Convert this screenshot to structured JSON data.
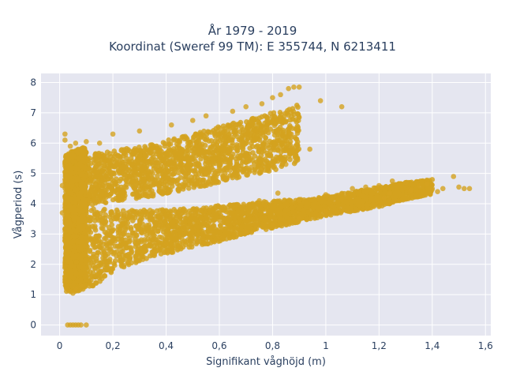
{
  "chart_data": {
    "type": "scatter",
    "title_lines": [
      "År 1979 - 2019",
      "Koordinat (Sweref 99 TM): E 355744, N 6213411"
    ],
    "xlabel": "Signifikant våghöjd (m)",
    "ylabel": "Vågperiod (s)",
    "xlim": [
      -0.07,
      1.62
    ],
    "ylim": [
      -0.35,
      8.3
    ],
    "x_ticks": [
      0,
      0.2,
      0.4,
      0.6,
      0.8,
      1,
      1.2,
      1.4,
      1.6
    ],
    "x_tick_labels": [
      "0",
      "0,2",
      "0,4",
      "0,6",
      "0,8",
      "1",
      "1,2",
      "1,4",
      "1,6"
    ],
    "y_ticks": [
      0,
      1,
      2,
      3,
      4,
      5,
      6,
      7,
      8
    ],
    "y_tick_labels": [
      "0",
      "1",
      "2",
      "3",
      "4",
      "5",
      "6",
      "7",
      "8"
    ],
    "grid": true,
    "colors": {
      "marker": "#d4a21f",
      "plot_bg": "#e5e6f0",
      "grid": "#ffffff"
    },
    "series": [
      {
        "points": [
          [
            0.03,
            0
          ],
          [
            0.04,
            0
          ],
          [
            0.05,
            0
          ],
          [
            0.06,
            0
          ],
          [
            0.07,
            0
          ],
          [
            0.08,
            0
          ],
          [
            0.1,
            0
          ],
          [
            0.02,
            1.5
          ],
          [
            0.02,
            1.6
          ],
          [
            0.03,
            1.2
          ],
          [
            0.04,
            1.1
          ],
          [
            0.05,
            1.05
          ],
          [
            0.06,
            1.2
          ],
          [
            0.08,
            1.3
          ],
          [
            0.02,
            6.3
          ],
          [
            0.02,
            6.1
          ],
          [
            0.04,
            5.9
          ],
          [
            0.06,
            6.0
          ],
          [
            0.1,
            6.05
          ],
          [
            0.15,
            6.0
          ],
          [
            0.02,
            4.8
          ],
          [
            0.01,
            4.6
          ],
          [
            0.01,
            3.7
          ],
          [
            0.2,
            6.3
          ],
          [
            0.3,
            6.4
          ],
          [
            0.42,
            6.6
          ],
          [
            0.5,
            6.75
          ],
          [
            0.55,
            6.9
          ],
          [
            0.65,
            7.05
          ],
          [
            0.7,
            7.2
          ],
          [
            0.76,
            7.3
          ],
          [
            0.8,
            7.5
          ],
          [
            0.86,
            7.8
          ],
          [
            0.88,
            7.85
          ],
          [
            0.9,
            7.85
          ],
          [
            0.83,
            7.6
          ],
          [
            1.06,
            7.2
          ],
          [
            0.98,
            7.4
          ],
          [
            0.87,
            6.3
          ],
          [
            0.94,
            5.8
          ],
          [
            0.55,
            5.0
          ],
          [
            0.6,
            5.1
          ],
          [
            0.64,
            5.1
          ],
          [
            0.72,
            5.2
          ],
          [
            0.76,
            5.15
          ],
          [
            0.8,
            5.3
          ],
          [
            0.85,
            5.3
          ],
          [
            0.82,
            4.35
          ],
          [
            0.75,
            4.1
          ],
          [
            0.9,
            4.1
          ],
          [
            1.0,
            4.3
          ],
          [
            1.1,
            4.5
          ],
          [
            1.2,
            4.6
          ],
          [
            1.25,
            4.75
          ],
          [
            1.3,
            4.7
          ],
          [
            1.35,
            4.6
          ],
          [
            1.4,
            4.5
          ],
          [
            1.44,
            4.5
          ],
          [
            1.48,
            4.9
          ],
          [
            1.5,
            4.55
          ],
          [
            1.52,
            4.5
          ],
          [
            1.54,
            4.5
          ],
          [
            1.42,
            4.4
          ],
          [
            1.32,
            4.45
          ],
          [
            1.22,
            4.2
          ],
          [
            1.24,
            4.35
          ],
          [
            1.38,
            4.65
          ],
          [
            1.15,
            4.55
          ],
          [
            0.3,
            2.5
          ],
          [
            0.35,
            2.4
          ],
          [
            0.4,
            2.7
          ],
          [
            0.5,
            2.85
          ],
          [
            0.6,
            2.9
          ],
          [
            0.7,
            3.1
          ],
          [
            0.8,
            3.3
          ],
          [
            0.9,
            3.5
          ],
          [
            1.0,
            3.75
          ]
        ],
        "trend_upper": {
          "x": [
            0.02,
            0.1,
            0.2,
            0.3,
            0.4,
            0.5,
            0.6,
            0.7,
            0.8,
            0.9
          ],
          "lo": [
            4.2,
            3.95,
            4.05,
            4.15,
            4.35,
            4.5,
            4.7,
            4.9,
            5.1,
            5.3
          ],
          "hi": [
            5.6,
            5.6,
            5.75,
            5.9,
            6.1,
            6.3,
            6.55,
            6.8,
            7.0,
            7.3
          ]
        },
        "trend_lower": {
          "x": [
            0.02,
            0.05,
            0.1,
            0.2,
            0.3,
            0.4,
            0.5,
            0.6,
            0.7,
            0.8,
            0.9,
            1.0,
            1.1,
            1.2,
            1.3,
            1.4
          ],
          "lo": [
            1.1,
            1.05,
            1.15,
            1.7,
            2.1,
            2.35,
            2.55,
            2.75,
            3.0,
            3.2,
            3.4,
            3.6,
            3.75,
            3.9,
            4.15,
            4.3
          ],
          "hi": [
            4.5,
            4.1,
            3.85,
            3.8,
            3.8,
            3.8,
            3.85,
            3.95,
            4.0,
            4.1,
            4.15,
            4.25,
            4.4,
            4.55,
            4.7,
            4.8
          ]
        },
        "core": {
          "x": [
            0.02,
            0.04,
            0.06,
            0.08,
            0.1
          ],
          "lo": [
            1.2,
            1.15,
            1.1,
            1.15,
            1.3
          ],
          "hi": [
            5.6,
            5.7,
            5.8,
            5.85,
            5.9
          ]
        }
      }
    ]
  }
}
